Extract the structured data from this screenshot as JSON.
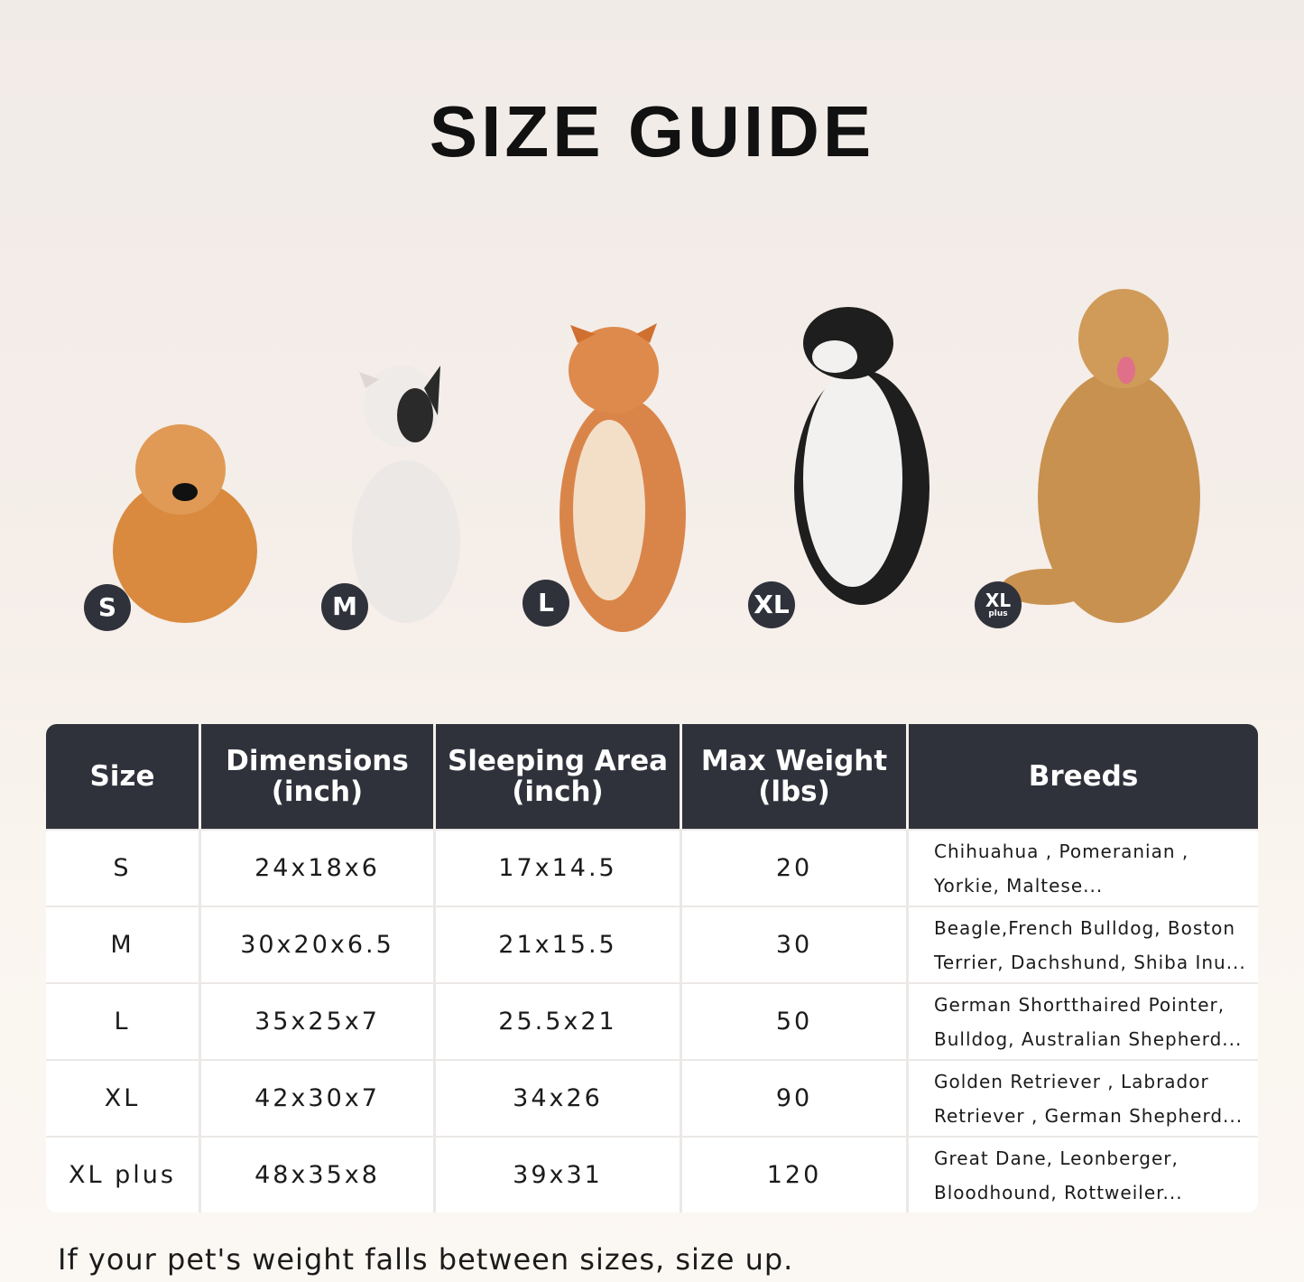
{
  "title": "SIZE GUIDE",
  "dogs": [
    {
      "badge": "S",
      "color": "#d98a3e"
    },
    {
      "badge": "M",
      "color": "#e8e4e2"
    },
    {
      "badge": "L",
      "color": "#d9854a"
    },
    {
      "badge": "XL",
      "color": "#1e1e1e"
    },
    {
      "badge": "XL",
      "badge_sub": "plus",
      "color": "#c8914f"
    }
  ],
  "table": {
    "headers": [
      [
        "Size",
        ""
      ],
      [
        "Dimensions",
        "(inch)"
      ],
      [
        "Sleeping Area",
        "(inch)"
      ],
      [
        "Max Weight",
        "(lbs)"
      ],
      [
        "Breeds",
        ""
      ]
    ],
    "rows": [
      {
        "size": "S",
        "dimensions": "24x18x6",
        "sleeping": "17x14.5",
        "weight": "20",
        "breeds": [
          "Chihuahua , Pomeranian ,",
          "Yorkie, Maltese..."
        ]
      },
      {
        "size": "M",
        "dimensions": "30x20x6.5",
        "sleeping": "21x15.5",
        "weight": "30",
        "breeds": [
          "Beagle,French Bulldog, Boston",
          "Terrier, Dachshund, Shiba Inu..."
        ]
      },
      {
        "size": "L",
        "dimensions": "35x25x7",
        "sleeping": "25.5x21",
        "weight": "50",
        "breeds": [
          "German Shortthaired Pointer,",
          "Bulldog, Australian Shepherd..."
        ]
      },
      {
        "size": "XL",
        "dimensions": "42x30x7",
        "sleeping": "34x26",
        "weight": "90",
        "breeds": [
          "Golden Retriever , Labrador",
          "Retriever , German Shepherd..."
        ]
      },
      {
        "size": "XL plus",
        "dimensions": "48x35x8",
        "sleeping": "39x31",
        "weight": "120",
        "breeds": [
          "Great Dane, Leonberger,",
          "Bloodhound, Rottweiler..."
        ]
      }
    ]
  },
  "note": "If your pet's weight falls between sizes, size up.",
  "colors": {
    "header": "#30323b",
    "badge": "#30323b"
  }
}
